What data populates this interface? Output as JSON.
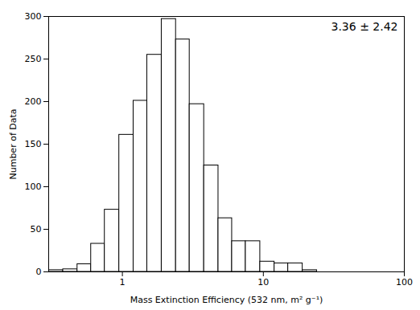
{
  "chart_data": {
    "type": "histogram",
    "annotation": "3.36 ± 2.42",
    "xlabel": "Mass Extinction Efficiency (532 nm, m² g⁻¹)",
    "ylabel": "Number of Data",
    "bins": [
      0.3,
      0.38,
      0.48,
      0.6,
      0.75,
      0.95,
      1.2,
      1.5,
      1.9,
      2.4,
      3.0,
      3.8,
      4.8,
      6.0,
      7.5,
      9.5,
      12.0,
      15.0,
      19.0,
      24.0
    ],
    "values": [
      2,
      3,
      9,
      33,
      73,
      161,
      201,
      255,
      297,
      273,
      197,
      125,
      63,
      36,
      36,
      12,
      10,
      10,
      2
    ],
    "color": "#ffffff",
    "log": "x",
    "xlim": [
      0.3,
      100
    ],
    "xticks": [
      1,
      10,
      100
    ],
    "ylim": [
      0,
      300
    ],
    "yticks": [
      0,
      50,
      100,
      150,
      200,
      250,
      300
    ],
    "grid": false
  }
}
